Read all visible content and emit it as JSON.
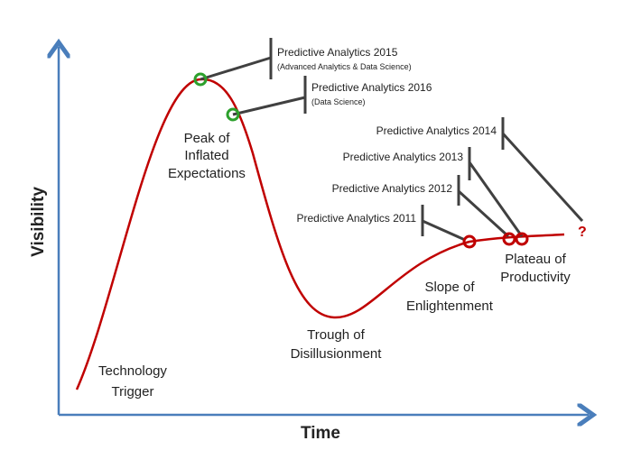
{
  "axes": {
    "x_label": "Time",
    "y_label": "Visibility"
  },
  "phases": [
    {
      "lines": [
        "Technology",
        "Trigger"
      ]
    },
    {
      "lines": [
        "Peak of",
        "Inflated",
        "Expectations"
      ]
    },
    {
      "lines": [
        "Trough of",
        "Disillusionment"
      ]
    },
    {
      "lines": [
        "Slope of",
        "Enlightenment"
      ]
    },
    {
      "lines": [
        "Plateau of",
        "Productivity"
      ]
    }
  ],
  "annotations": [
    {
      "title": "Predictive Analytics 2015",
      "subtitle": "(Advanced Analytics & Data Science)"
    },
    {
      "title": "Predictive Analytics 2016",
      "subtitle": "(Data Science)"
    },
    {
      "title": "Predictive Analytics 2014"
    },
    {
      "title": "Predictive Analytics 2013"
    },
    {
      "title": "Predictive Analytics 2012"
    },
    {
      "title": "Predictive Analytics 2011"
    }
  ],
  "future_marker": "?"
}
